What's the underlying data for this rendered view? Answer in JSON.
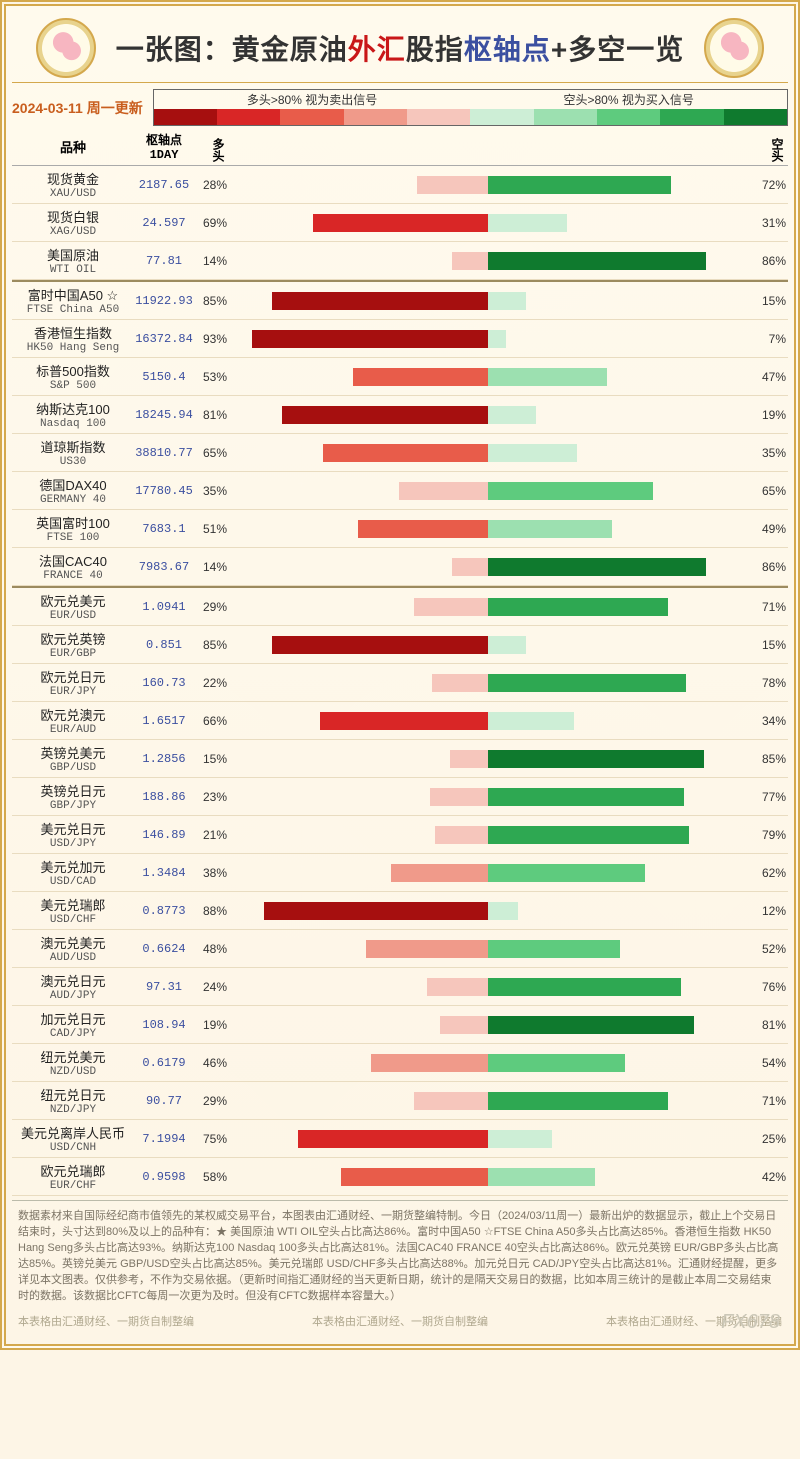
{
  "title": {
    "pre": "一张图：黄金原油",
    "red": "外汇",
    "mid": "股指",
    "blue": "枢轴点",
    "post": "+多空一览"
  },
  "date_label": "2024-03-11 周一更新",
  "legend": {
    "long_text": "多头>80% 视为卖出信号",
    "short_text": "空头>80% 视为买入信号",
    "colors": [
      "#a60f0f",
      "#d92626",
      "#e85c4a",
      "#f09a8a",
      "#f6c6bc",
      "#cdeed6",
      "#9ce0b0",
      "#5ecb7e",
      "#2ea852",
      "#0f7a2e"
    ]
  },
  "headers": {
    "name": "品种",
    "pivot": "枢轴点\n1DAY",
    "long": "多头",
    "short": "空头"
  },
  "chart": {
    "bar_full_width_pct": 100,
    "mid": 50
  },
  "groups": [
    {
      "rows": [
        {
          "cn": "现货黄金",
          "en": "XAU/USD",
          "pivot": "2187.65",
          "long": 28,
          "short": 72
        },
        {
          "cn": "现货白银",
          "en": "XAG/USD",
          "pivot": "24.597",
          "long": 69,
          "short": 31
        },
        {
          "cn": "美国原油",
          "en": "WTI OIL",
          "pivot": "77.81",
          "long": 14,
          "short": 86
        }
      ]
    },
    {
      "rows": [
        {
          "cn": "富时中国A50 ☆",
          "en": "FTSE China A50",
          "pivot": "11922.93",
          "long": 85,
          "short": 15
        },
        {
          "cn": "香港恒生指数",
          "en": "HK50 Hang Seng",
          "pivot": "16372.84",
          "long": 93,
          "short": 7
        },
        {
          "cn": "标普500指数",
          "en": "S&P 500",
          "pivot": "5150.4",
          "long": 53,
          "short": 47
        },
        {
          "cn": "纳斯达克100",
          "en": "Nasdaq 100",
          "pivot": "18245.94",
          "long": 81,
          "short": 19
        },
        {
          "cn": "道琼斯指数",
          "en": "US30",
          "pivot": "38810.77",
          "long": 65,
          "short": 35
        },
        {
          "cn": "德国DAX40",
          "en": "GERMANY 40",
          "pivot": "17780.45",
          "long": 35,
          "short": 65
        },
        {
          "cn": "英国富时100",
          "en": "FTSE 100",
          "pivot": "7683.1",
          "long": 51,
          "short": 49
        },
        {
          "cn": "法国CAC40",
          "en": "FRANCE 40",
          "pivot": "7983.67",
          "long": 14,
          "short": 86
        }
      ]
    },
    {
      "rows": [
        {
          "cn": "欧元兑美元",
          "en": "EUR/USD",
          "pivot": "1.0941",
          "long": 29,
          "short": 71
        },
        {
          "cn": "欧元兑英镑",
          "en": "EUR/GBP",
          "pivot": "0.851",
          "long": 85,
          "short": 15
        },
        {
          "cn": "欧元兑日元",
          "en": "EUR/JPY",
          "pivot": "160.73",
          "long": 22,
          "short": 78
        },
        {
          "cn": "欧元兑澳元",
          "en": "EUR/AUD",
          "pivot": "1.6517",
          "long": 66,
          "short": 34
        },
        {
          "cn": "英镑兑美元",
          "en": "GBP/USD",
          "pivot": "1.2856",
          "long": 15,
          "short": 85
        },
        {
          "cn": "英镑兑日元",
          "en": "GBP/JPY",
          "pivot": "188.86",
          "long": 23,
          "short": 77
        },
        {
          "cn": "美元兑日元",
          "en": "USD/JPY",
          "pivot": "146.89",
          "long": 21,
          "short": 79
        },
        {
          "cn": "美元兑加元",
          "en": "USD/CAD",
          "pivot": "1.3484",
          "long": 38,
          "short": 62
        },
        {
          "cn": "美元兑瑞郎",
          "en": "USD/CHF",
          "pivot": "0.8773",
          "long": 88,
          "short": 12
        },
        {
          "cn": "澳元兑美元",
          "en": "AUD/USD",
          "pivot": "0.6624",
          "long": 48,
          "short": 52
        },
        {
          "cn": "澳元兑日元",
          "en": "AUD/JPY",
          "pivot": "97.31",
          "long": 24,
          "short": 76
        },
        {
          "cn": "加元兑日元",
          "en": "CAD/JPY",
          "pivot": "108.94",
          "long": 19,
          "short": 81
        },
        {
          "cn": "纽元兑美元",
          "en": "NZD/USD",
          "pivot": "0.6179",
          "long": 46,
          "short": 54
        },
        {
          "cn": "纽元兑日元",
          "en": "NZD/JPY",
          "pivot": "90.77",
          "long": 29,
          "short": 71
        },
        {
          "cn": "美元兑离岸人民币",
          "en": "USD/CNH",
          "pivot": "7.1994",
          "long": 75,
          "short": 25
        },
        {
          "cn": "欧元兑瑞郎",
          "en": "EUR/CHF",
          "pivot": "0.9598",
          "long": 58,
          "short": 42
        }
      ]
    }
  ],
  "footer_text": "数据素材来自国际经纪商市值领先的某权威交易平台，本图表由汇通财经、一期货整编特制。今日（2024/03/11周一）最新出炉的数据显示，截止上个交易日结束时，头寸达到80%及以上的品种有：★ 美国原油 WTI OIL空头占比高达86%。富时中国A50 ☆FTSE China A50多头占比高达85%。香港恒生指数 HK50 Hang Seng多头占比高达93%。纳斯达克100 Nasdaq 100多头占比高达81%。法国CAC40 FRANCE 40空头占比高达86%。欧元兑英镑 EUR/GBP多头占比高达85%。英镑兑美元 GBP/USD空头占比高达85%。美元兑瑞郎 USD/CHF多头占比高达88%。加元兑日元 CAD/JPY空头占比高达81%。汇通财经提醒，更多详见本文图表。仅供参考，不作为交易依据。（更新时间指汇通财经的当天更新日期，统计的是隔天交易日的数据，比如本周三统计的是截止本周二交易结束时的数据。该数据比CFTC每周一次更为及时。但没有CFTC数据样本容量大。）",
  "credits": [
    "本表格由汇通财经、一期货自制整编",
    "本表格由汇通财经、一期货自制整编",
    "本表格由汇通财经、一期货自制整编"
  ],
  "watermark": "FX678",
  "colors": {
    "red_scale": [
      "#a60f0f",
      "#d92626",
      "#e85c4a",
      "#f09a8a",
      "#f6c6bc"
    ],
    "green_scale": [
      "#cdeed6",
      "#9ce0b0",
      "#5ecb7e",
      "#2ea852",
      "#0f7a2e"
    ]
  }
}
